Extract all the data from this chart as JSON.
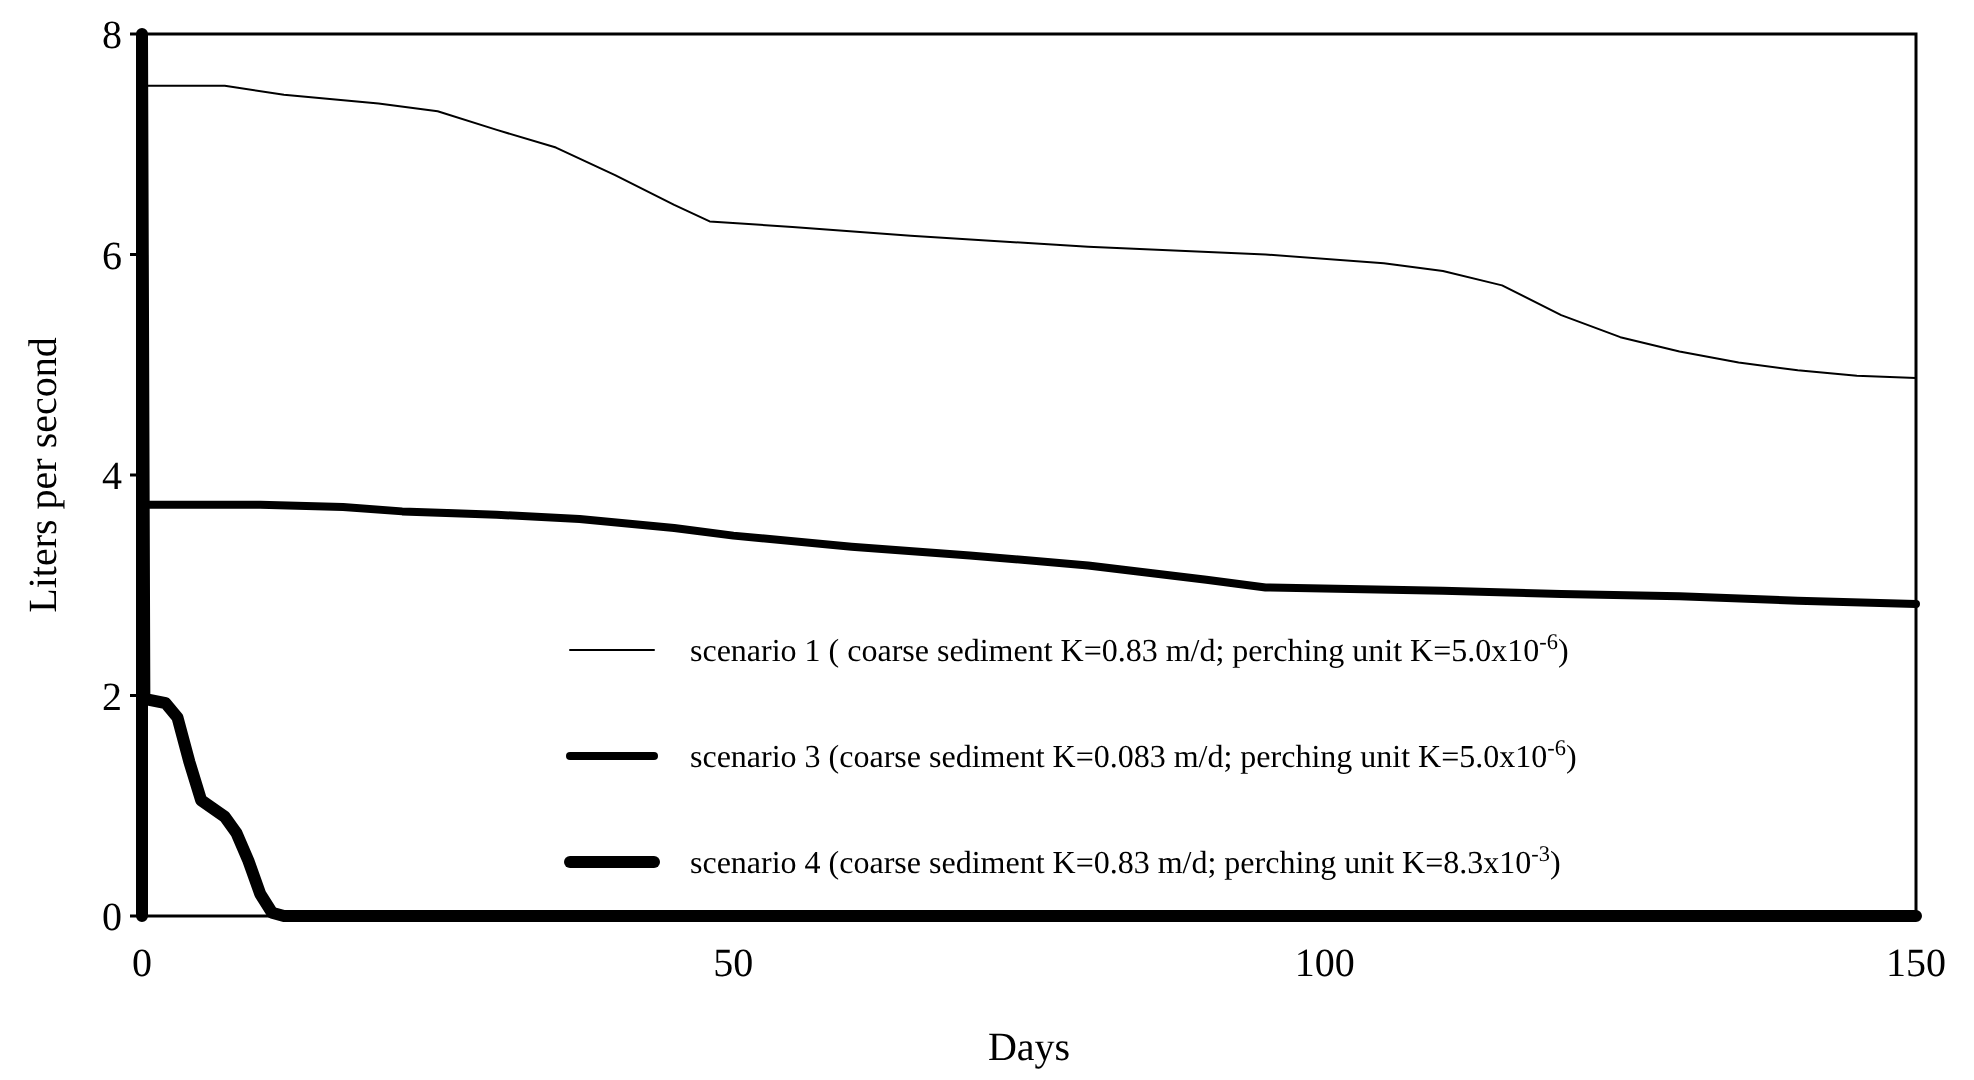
{
  "chart_data": {
    "type": "line",
    "xlabel": "Days",
    "ylabel": "Liters per second",
    "xlim": [
      0,
      150
    ],
    "ylim": [
      0,
      8
    ],
    "xticks": [
      0,
      50,
      100,
      150
    ],
    "yticks": [
      0,
      2,
      4,
      6,
      8
    ],
    "grid": false,
    "legend": "bottom",
    "line_style": "solid",
    "series": [
      {
        "name": "scenario 1 ( coarse sediment K=0.83 m/d; perching unit K=5.0x10$^{-6}$)",
        "color": "#000000",
        "x": [
          0,
          7,
          12,
          20,
          25,
          30,
          35,
          40,
          45,
          48,
          55,
          65,
          80,
          95,
          105,
          110,
          115,
          120,
          125,
          130,
          135,
          140,
          145,
          150
        ],
        "values": [
          7.53,
          7.53,
          7.45,
          7.37,
          7.3,
          7.13,
          6.97,
          6.72,
          6.45,
          6.3,
          6.25,
          6.17,
          6.07,
          6.0,
          5.92,
          5.85,
          5.72,
          5.45,
          5.25,
          5.12,
          5.02,
          4.95,
          4.9,
          4.88
        ]
      },
      {
        "name": "scenario 3 (coarse sediment K=0.083 m/d; perching unit K=5.0x10$^{-6}$)",
        "color": "#000000",
        "x": [
          0,
          0.3,
          10,
          17,
          22,
          30,
          37,
          45,
          50,
          60,
          70,
          80,
          90,
          95,
          110,
          120,
          130,
          140,
          150
        ],
        "values": [
          3.85,
          3.73,
          3.73,
          3.71,
          3.67,
          3.64,
          3.6,
          3.52,
          3.45,
          3.35,
          3.27,
          3.18,
          3.05,
          2.98,
          2.95,
          2.92,
          2.9,
          2.86,
          2.83
        ]
      },
      {
        "name": "scenario 4 (coarse sediment K=0.83 m/d; perching unit K=8.3x10$^{-3}$)",
        "color": "#000000",
        "x": [
          0,
          0,
          0.2,
          2,
          3,
          4,
          5,
          7,
          8,
          9,
          10,
          11,
          12,
          150
        ],
        "values": [
          0,
          8,
          1.97,
          1.93,
          1.8,
          1.4,
          1.05,
          0.9,
          0.75,
          0.5,
          0.2,
          0.03,
          0,
          0
        ]
      }
    ]
  }
}
